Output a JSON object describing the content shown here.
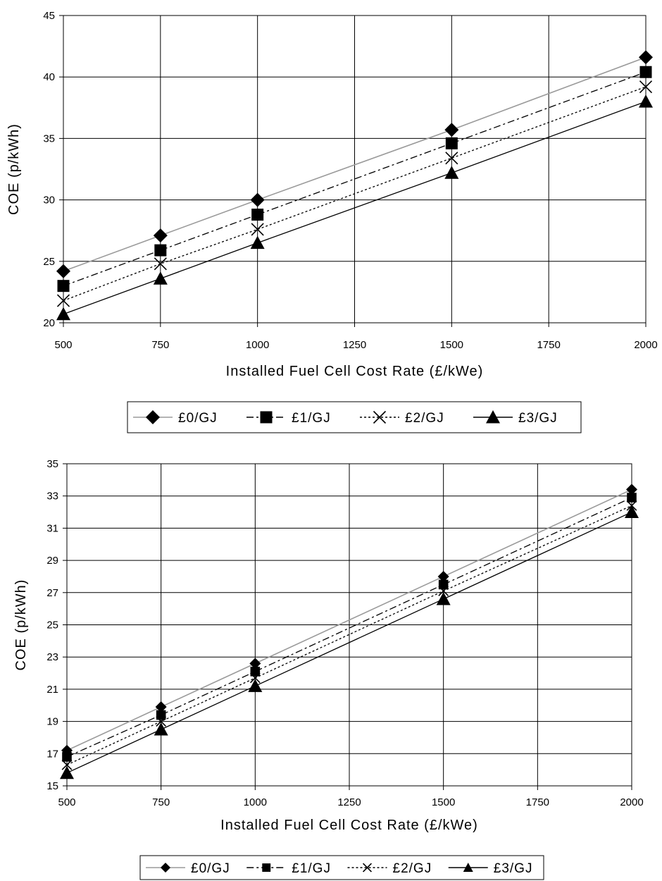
{
  "chart_data": [
    {
      "type": "line",
      "x": [
        500,
        750,
        1000,
        1500,
        2000
      ],
      "xticks": [
        500,
        750,
        1000,
        1250,
        1500,
        1750,
        2000
      ],
      "xlim": [
        500,
        2000
      ],
      "ylim": [
        20,
        45
      ],
      "yticks": [
        20,
        25,
        30,
        35,
        40,
        45
      ],
      "xlabel": "Installed Fuel Cell Cost Rate (£/kWe)",
      "ylabel": "COE  (p/kWh)",
      "grid": true,
      "legend_position": "bottom",
      "series": [
        {
          "name": "£0/GJ",
          "values": [
            24.2,
            27.1,
            30.0,
            35.7,
            41.6
          ],
          "marker": "diamond",
          "line": "solid",
          "color": "#9a9a9a"
        },
        {
          "name": "£1/GJ",
          "values": [
            23.0,
            25.9,
            28.8,
            34.6,
            40.4
          ],
          "marker": "square",
          "line": "dashdot",
          "color": "#000000"
        },
        {
          "name": "£2/GJ",
          "values": [
            21.8,
            24.8,
            27.6,
            33.4,
            39.2
          ],
          "marker": "x",
          "line": "dotted",
          "color": "#000000"
        },
        {
          "name": "£3/GJ",
          "values": [
            20.7,
            23.6,
            26.5,
            32.2,
            38.0
          ],
          "marker": "triangle",
          "line": "solid",
          "color": "#000000"
        }
      ]
    },
    {
      "type": "line",
      "x": [
        500,
        750,
        1000,
        1500,
        2000
      ],
      "xticks": [
        500,
        750,
        1000,
        1250,
        1500,
        1750,
        2000
      ],
      "xlim": [
        500,
        2000
      ],
      "ylim": [
        15,
        35
      ],
      "yticks": [
        15,
        17,
        19,
        21,
        23,
        25,
        27,
        29,
        31,
        33,
        35
      ],
      "xlabel": "Installed Fuel Cell Cost Rate (£/kWe)",
      "ylabel": "COE  (p/kWh)",
      "grid": true,
      "legend_position": "bottom",
      "series": [
        {
          "name": "£0/GJ",
          "values": [
            17.2,
            19.9,
            22.6,
            28.0,
            33.4
          ],
          "marker": "diamond",
          "line": "solid",
          "color": "#9a9a9a"
        },
        {
          "name": "£1/GJ",
          "values": [
            16.8,
            19.4,
            22.1,
            27.5,
            32.9
          ],
          "marker": "square",
          "line": "dashdot",
          "color": "#000000"
        },
        {
          "name": "£2/GJ",
          "values": [
            16.3,
            19.0,
            21.7,
            27.1,
            32.4
          ],
          "marker": "x",
          "line": "dotted",
          "color": "#000000"
        },
        {
          "name": "£3/GJ",
          "values": [
            15.8,
            18.5,
            21.2,
            26.6,
            32.0
          ],
          "marker": "triangle",
          "line": "solid",
          "color": "#000000"
        }
      ]
    }
  ]
}
